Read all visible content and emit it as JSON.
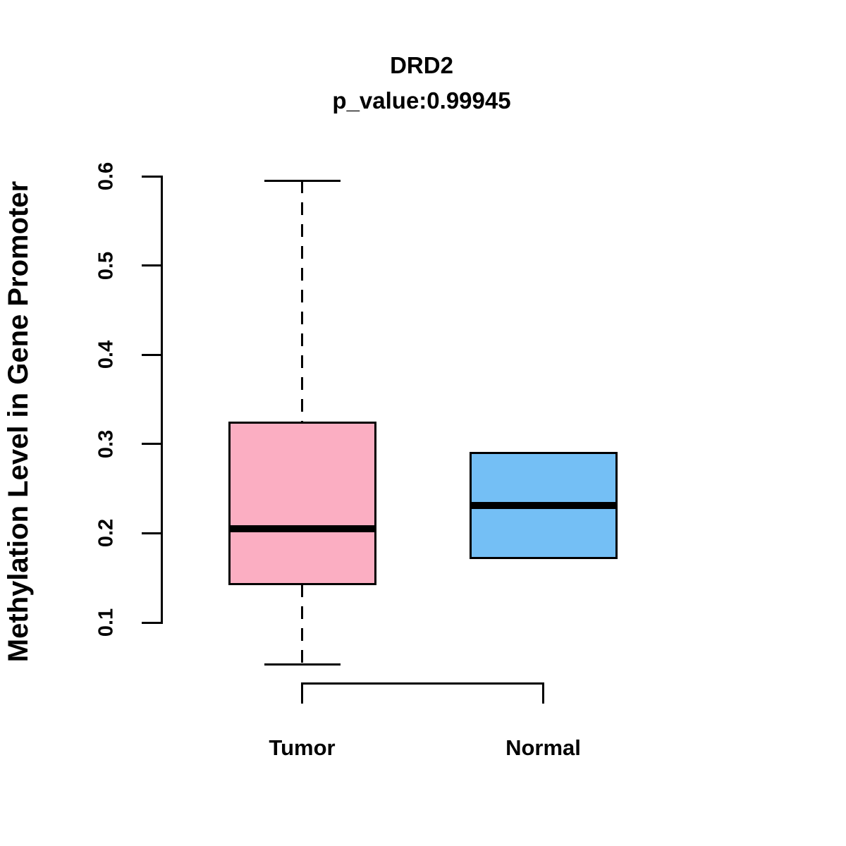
{
  "chart_data": {
    "type": "boxplot",
    "title": "DRD2",
    "subtitle": "p_value:0.99945",
    "ylabel": "Methylation Level in Gene Promoter",
    "xlabel": "",
    "ylim": [
      0.1,
      0.6
    ],
    "yticks": [
      0.1,
      0.2,
      0.3,
      0.4,
      0.5,
      0.6
    ],
    "categories": [
      "Tumor",
      "Normal"
    ],
    "series": [
      {
        "name": "Tumor",
        "color": "#FBAEC2",
        "whisker_low": 0.053,
        "q1": 0.143,
        "median": 0.205,
        "q3": 0.324,
        "whisker_high": 0.595
      },
      {
        "name": "Normal",
        "color": "#74BFF5",
        "whisker_low": 0.172,
        "q1": 0.172,
        "median": 0.231,
        "q3": 0.29,
        "whisker_high": 0.29
      }
    ],
    "grid": false,
    "legend_position": "none",
    "colors": {
      "box_border": "#000000",
      "median_line": "#000000",
      "axis": "#000000",
      "text": "#000000",
      "background": "#FFFFFF"
    }
  }
}
